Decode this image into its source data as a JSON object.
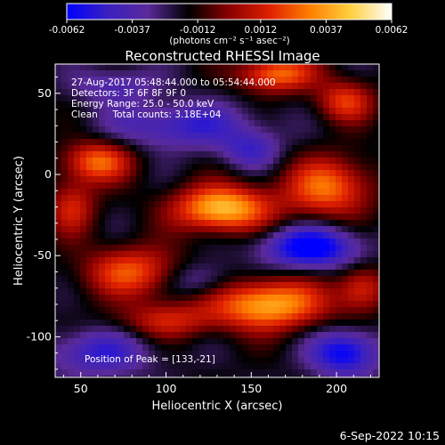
{
  "chart_data": {
    "type": "heatmap",
    "title": "Reconstructed RHESSI Image",
    "xlabel": "Heliocentric X (arcsec)",
    "ylabel": "Heliocentric Y (arcsec)",
    "xlim": [
      35,
      225
    ],
    "ylim": [
      -125,
      68
    ],
    "x_ticks": [
      50,
      100,
      150,
      200
    ],
    "y_ticks": [
      50,
      0,
      -50,
      -100
    ],
    "colorbar": {
      "min": -0.0062,
      "max": 0.0062,
      "ticks": [
        "-0.0062",
        "-0.0037",
        "-0.0012",
        "0.0012",
        "0.0037",
        "0.0062"
      ],
      "unit_label": "(photons cm⁻² s⁻¹ asec⁻²)",
      "colors": [
        "#0000ff",
        "#3a20c0",
        "#5a2a9a",
        "#000000",
        "#8a0000",
        "#e02000",
        "#ff8000",
        "#ffd040",
        "#ffffff"
      ]
    },
    "info_lines": [
      "27-Aug-2017 05:48:44.000 to 05:54:44.000",
      "Detectors: 3F 6F 8F 9F 0",
      "Energy Range: 25.0 - 50.0 keV",
      "Clean     Total counts: 3.18E+04"
    ],
    "peak_label": "Position of Peak = [133,-21]",
    "peak": [
      133,
      -21
    ],
    "sources": [
      {
        "x": 133,
        "y": -21,
        "intensity": 0.0062,
        "sx": 20,
        "sy": 10
      },
      {
        "x": 160,
        "y": -80,
        "intensity": 0.0058,
        "sx": 24,
        "sy": 11
      },
      {
        "x": 60,
        "y": 8,
        "intensity": 0.0044,
        "sx": 14,
        "sy": 9
      },
      {
        "x": 195,
        "y": -8,
        "intensity": 0.0045,
        "sx": 18,
        "sy": 13
      },
      {
        "x": 165,
        "y": 62,
        "intensity": 0.0046,
        "sx": 16,
        "sy": 8
      },
      {
        "x": 205,
        "y": 45,
        "intensity": 0.0035,
        "sx": 12,
        "sy": 9
      },
      {
        "x": 80,
        "y": -60,
        "intensity": 0.004,
        "sx": 20,
        "sy": 11
      },
      {
        "x": 100,
        "y": -90,
        "intensity": 0.0028,
        "sx": 20,
        "sy": 8
      },
      {
        "x": 215,
        "y": -70,
        "intensity": 0.0032,
        "sx": 10,
        "sy": 10
      },
      {
        "x": 45,
        "y": -20,
        "intensity": 0.003,
        "sx": 10,
        "sy": 12
      },
      {
        "x": 110,
        "y": 30,
        "intensity": -0.003,
        "sx": 30,
        "sy": 10
      },
      {
        "x": 185,
        "y": -45,
        "intensity": -0.005,
        "sx": 20,
        "sy": 9
      },
      {
        "x": 205,
        "y": -110,
        "intensity": -0.0045,
        "sx": 14,
        "sy": 10
      },
      {
        "x": 60,
        "y": -110,
        "intensity": -0.003,
        "sx": 22,
        "sy": 10
      },
      {
        "x": 70,
        "y": 55,
        "intensity": -0.002,
        "sx": 18,
        "sy": 8
      },
      {
        "x": 150,
        "y": 15,
        "intensity": -0.0025,
        "sx": 12,
        "sy": 8
      },
      {
        "x": 120,
        "y": -65,
        "intensity": -0.0022,
        "sx": 14,
        "sy": 8
      }
    ]
  },
  "footer": {
    "datestamp": "6-Sep-2022 10:15"
  }
}
